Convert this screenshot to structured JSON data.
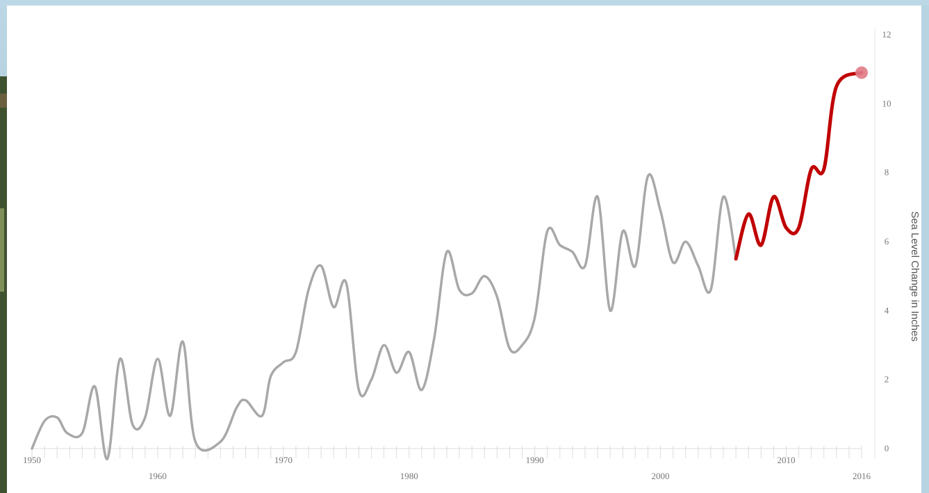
{
  "chart_data": {
    "type": "line",
    "ylabel": "Sea Level Change in Inches",
    "xlabel": "",
    "xlim": [
      1950,
      2016
    ],
    "ylim": [
      0,
      12
    ],
    "grid": false,
    "x_tick_labels": [
      "1950",
      "1960",
      "1970",
      "1980",
      "1990",
      "2000",
      "2010",
      "2016"
    ],
    "y_tick_labels": [
      "0",
      "2",
      "4",
      "6",
      "8",
      "10",
      "12"
    ],
    "series": [
      {
        "color": "#a8a8a8",
        "points": [
          [
            1950.0,
            0.0
          ],
          [
            1951.0,
            0.8
          ],
          [
            1952.0,
            0.9
          ],
          [
            1952.8,
            0.45
          ],
          [
            1954.0,
            0.45
          ],
          [
            1955.0,
            1.8
          ],
          [
            1956.0,
            -0.3
          ],
          [
            1957.0,
            2.6
          ],
          [
            1958.0,
            0.7
          ],
          [
            1959.0,
            0.9
          ],
          [
            1960.0,
            2.6
          ],
          [
            1961.0,
            0.95
          ],
          [
            1962.0,
            3.1
          ],
          [
            1963.0,
            0.2
          ],
          [
            1965.0,
            0.2
          ],
          [
            1966.3,
            1.2
          ],
          [
            1967.0,
            1.4
          ],
          [
            1968.3,
            0.95
          ],
          [
            1969.0,
            2.1
          ],
          [
            1970.0,
            2.5
          ],
          [
            1971.0,
            2.8
          ],
          [
            1972.0,
            4.6
          ],
          [
            1973.0,
            5.3
          ],
          [
            1974.0,
            4.1
          ],
          [
            1975.0,
            4.8
          ],
          [
            1976.0,
            1.7
          ],
          [
            1977.0,
            2.0
          ],
          [
            1978.0,
            3.0
          ],
          [
            1979.0,
            2.2
          ],
          [
            1980.0,
            2.8
          ],
          [
            1981.0,
            1.7
          ],
          [
            1982.0,
            3.2
          ],
          [
            1983.0,
            5.7
          ],
          [
            1984.0,
            4.6
          ],
          [
            1985.0,
            4.5
          ],
          [
            1986.0,
            5.0
          ],
          [
            1987.0,
            4.4
          ],
          [
            1988.0,
            2.9
          ],
          [
            1989.0,
            3.0
          ],
          [
            1990.0,
            3.8
          ],
          [
            1991.0,
            6.3
          ],
          [
            1992.0,
            5.9
          ],
          [
            1993.0,
            5.7
          ],
          [
            1994.0,
            5.3
          ],
          [
            1995.0,
            7.3
          ],
          [
            1996.0,
            4.0
          ],
          [
            1997.0,
            6.3
          ],
          [
            1998.0,
            5.3
          ],
          [
            1999.0,
            7.9
          ],
          [
            2000.0,
            6.9
          ],
          [
            2001.0,
            5.4
          ],
          [
            2002.0,
            6.0
          ],
          [
            2003.0,
            5.3
          ],
          [
            2004.0,
            4.6
          ],
          [
            2005.0,
            7.3
          ],
          [
            2006.0,
            5.5
          ]
        ]
      },
      {
        "color": "#c00000",
        "points": [
          [
            2006.0,
            5.5
          ],
          [
            2007.0,
            6.8
          ],
          [
            2008.0,
            5.9
          ],
          [
            2009.0,
            7.3
          ],
          [
            2010.0,
            6.4
          ],
          [
            2011.0,
            6.4
          ],
          [
            2012.0,
            8.1
          ],
          [
            2013.0,
            8.1
          ],
          [
            2014.0,
            10.5
          ],
          [
            2016.0,
            10.9
          ]
        ]
      }
    ],
    "endpoint_marker": {
      "x": 2016.0,
      "y": 10.9,
      "color": "#e07a86"
    }
  }
}
